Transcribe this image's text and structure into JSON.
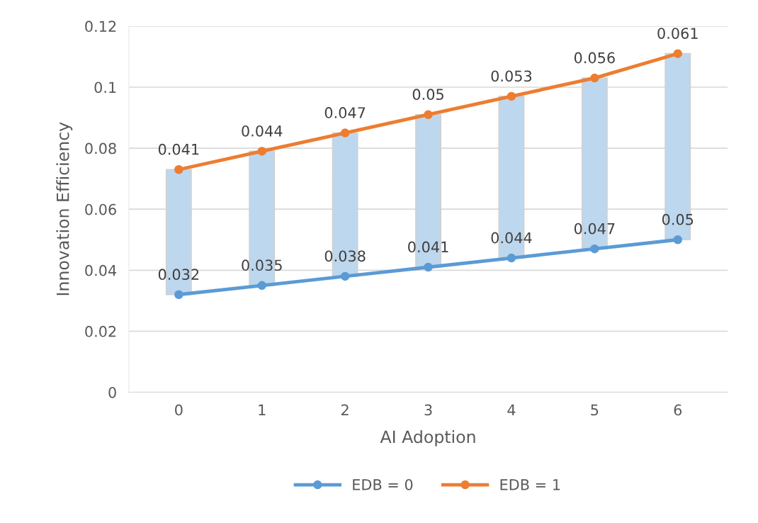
{
  "chart_data": {
    "type": "bar",
    "xlabel": "AI Adoption",
    "ylabel": "Innovation Efficiency",
    "categories": [
      "0",
      "1",
      "2",
      "3",
      "4",
      "5",
      "6"
    ],
    "series": [
      {
        "color": "#bdd7ee",
        "base": [
          0.032,
          0.035,
          0.038,
          0.041,
          0.044,
          0.047,
          0.05
        ],
        "values": [
          0.041,
          0.044,
          0.047,
          0.05,
          0.053,
          0.056,
          0.061
        ],
        "value_labels": [
          "0.041",
          "0.044",
          "0.047",
          "0.05",
          "0.053",
          "0.056",
          "0.061"
        ]
      },
      {
        "type": "line",
        "name": "EDB = 0",
        "color": "#5b9bd5",
        "values": [
          0.032,
          0.035,
          0.038,
          0.041,
          0.044,
          0.047,
          0.05
        ],
        "value_labels": [
          "0.032",
          "0.035",
          "0.038",
          "0.041",
          "0.044",
          "0.047",
          "0.05"
        ]
      },
      {
        "type": "line",
        "name": "EDB = 1",
        "color": "#ed7d31",
        "values": [
          0.073,
          0.079,
          0.085,
          0.091,
          0.097,
          0.103,
          0.111
        ]
      }
    ],
    "ylim": [
      0,
      0.12
    ],
    "yticks": [
      0,
      0.02,
      0.04,
      0.06,
      0.08,
      0.1,
      0.12
    ],
    "grid": "y",
    "legend": "bottom",
    "marker": "circle",
    "line_style": "solid"
  }
}
